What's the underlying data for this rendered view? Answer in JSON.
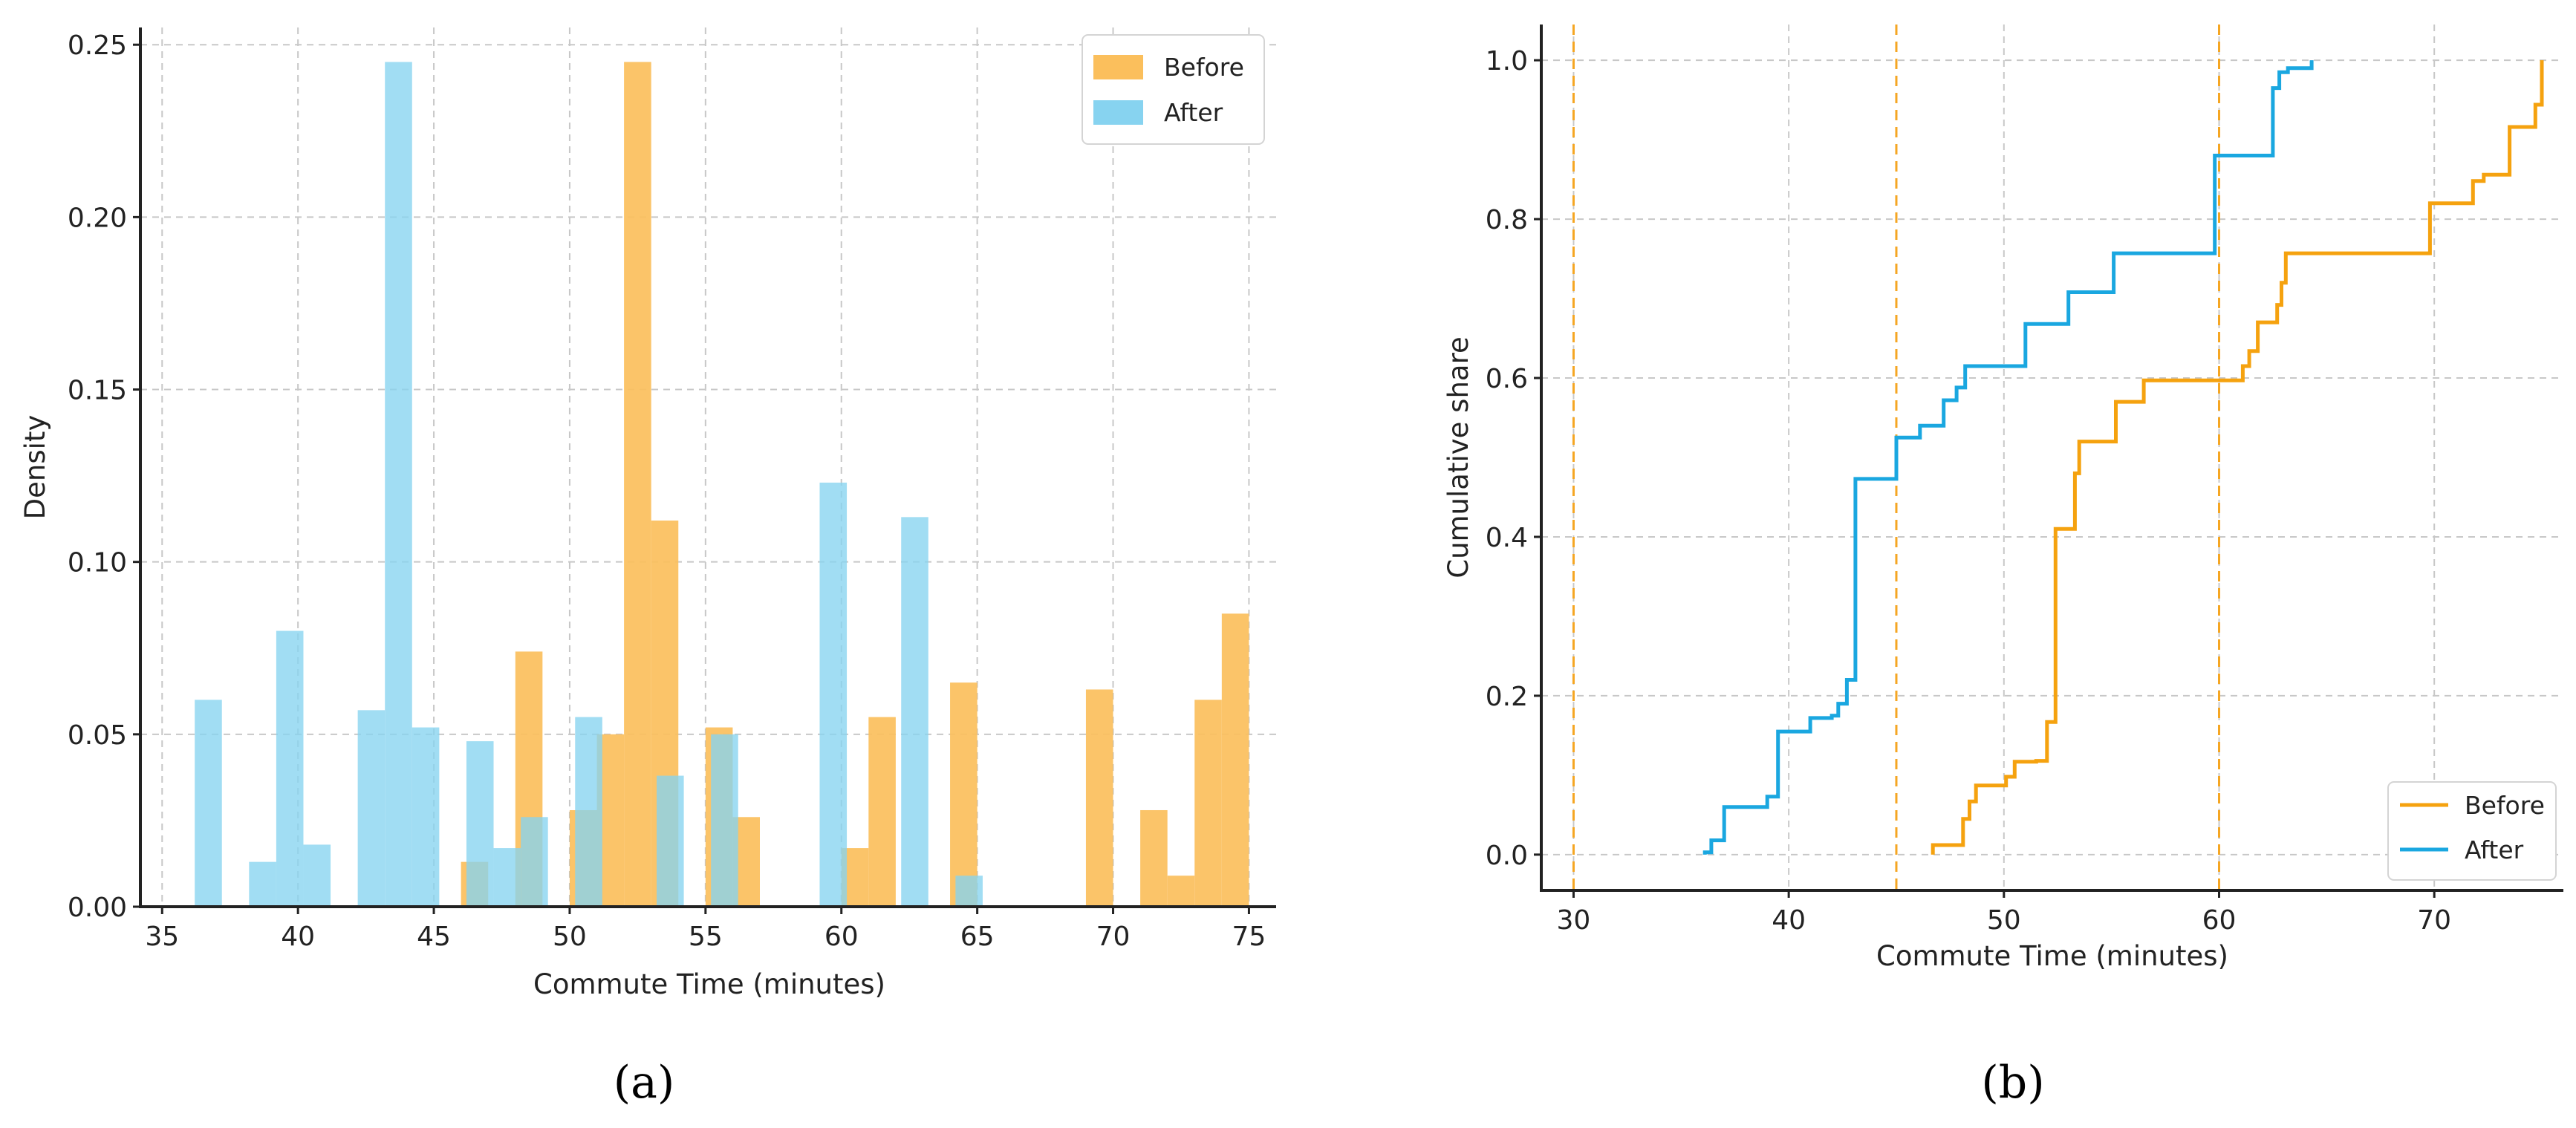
{
  "chart_data": [
    {
      "panel": "a",
      "caption": "(a)",
      "type": "bar",
      "subtype": "overlaid histogram",
      "xlabel": "Commute Time (minutes)",
      "ylabel": "Density",
      "xlim": [
        34.2,
        76.0
      ],
      "ylim": [
        0,
        0.255
      ],
      "xticks": [
        "35",
        "40",
        "45",
        "50",
        "55",
        "60",
        "65",
        "70",
        "75"
      ],
      "yticks": [
        "0.00",
        "0.05",
        "0.10",
        "0.15",
        "0.20",
        "0.25"
      ],
      "grid": true,
      "legend_position": "top-right",
      "series": [
        {
          "name": "Before",
          "color": "#fbbf5c",
          "bins": [
            {
              "x0": 46.0,
              "x1": 47.0,
              "value": 0.013
            },
            {
              "x0": 48.0,
              "x1": 49.0,
              "value": 0.074
            },
            {
              "x0": 50.0,
              "x1": 51.0,
              "value": 0.028
            },
            {
              "x0": 51.0,
              "x1": 52.0,
              "value": 0.05
            },
            {
              "x0": 52.0,
              "x1": 53.0,
              "value": 0.245
            },
            {
              "x0": 53.0,
              "x1": 54.0,
              "value": 0.112
            },
            {
              "x0": 55.0,
              "x1": 56.0,
              "value": 0.052
            },
            {
              "x0": 56.0,
              "x1": 57.0,
              "value": 0.026
            },
            {
              "x0": 60.0,
              "x1": 61.0,
              "value": 0.017
            },
            {
              "x0": 61.0,
              "x1": 62.0,
              "value": 0.055
            },
            {
              "x0": 64.0,
              "x1": 65.0,
              "value": 0.065
            },
            {
              "x0": 69.0,
              "x1": 70.0,
              "value": 0.063
            },
            {
              "x0": 71.0,
              "x1": 72.0,
              "value": 0.028
            },
            {
              "x0": 72.0,
              "x1": 73.0,
              "value": 0.009
            },
            {
              "x0": 73.0,
              "x1": 74.0,
              "value": 0.06
            },
            {
              "x0": 74.0,
              "x1": 75.0,
              "value": 0.085
            }
          ]
        },
        {
          "name": "After",
          "color": "#87d3f0",
          "bins": [
            {
              "x0": 36.2,
              "x1": 37.2,
              "value": 0.06
            },
            {
              "x0": 38.2,
              "x1": 39.2,
              "value": 0.013
            },
            {
              "x0": 39.2,
              "x1": 40.2,
              "value": 0.08
            },
            {
              "x0": 40.2,
              "x1": 41.2,
              "value": 0.018
            },
            {
              "x0": 42.2,
              "x1": 43.2,
              "value": 0.057
            },
            {
              "x0": 43.2,
              "x1": 44.2,
              "value": 0.245
            },
            {
              "x0": 44.2,
              "x1": 45.2,
              "value": 0.052
            },
            {
              "x0": 46.2,
              "x1": 47.2,
              "value": 0.048
            },
            {
              "x0": 47.2,
              "x1": 48.2,
              "value": 0.017
            },
            {
              "x0": 48.2,
              "x1": 49.2,
              "value": 0.026
            },
            {
              "x0": 50.2,
              "x1": 51.2,
              "value": 0.055
            },
            {
              "x0": 53.2,
              "x1": 54.2,
              "value": 0.038
            },
            {
              "x0": 55.2,
              "x1": 56.2,
              "value": 0.05
            },
            {
              "x0": 59.2,
              "x1": 60.2,
              "value": 0.123
            },
            {
              "x0": 62.2,
              "x1": 63.2,
              "value": 0.113
            },
            {
              "x0": 64.2,
              "x1": 65.2,
              "value": 0.009
            }
          ]
        }
      ]
    },
    {
      "panel": "b",
      "caption": "(b)",
      "type": "line",
      "subtype": "empirical CDF step",
      "xlabel": "Commute Time (minutes)",
      "ylabel": "Cumulative share",
      "xlim": [
        28.5,
        76.0
      ],
      "ylim": [
        -0.045,
        1.045
      ],
      "xticks": [
        "30",
        "40",
        "50",
        "60",
        "70"
      ],
      "yticks": [
        "0.0",
        "0.2",
        "0.4",
        "0.6",
        "0.8",
        "1.0"
      ],
      "grid": true,
      "reference_lines_x": [
        30,
        45,
        60
      ],
      "reference_line_color": "#f5a623",
      "legend_position": "bottom-right",
      "series": [
        {
          "name": "Before",
          "color": "#f5a20f",
          "x": [
            46.7,
            48.1,
            48.4,
            48.7,
            49.6,
            50.1,
            50.5,
            51.5,
            52.0,
            52.4,
            53.1,
            53.3,
            53.5,
            55.2,
            56.5,
            59.8,
            60.5,
            61.1,
            61.4,
            61.8,
            62.7,
            62.9,
            63.1,
            69.8,
            71.5,
            71.8,
            72.3,
            73.5,
            74.7,
            75.0
          ],
          "y": [
            0.012,
            0.045,
            0.067,
            0.087,
            0.087,
            0.098,
            0.117,
            0.118,
            0.167,
            0.41,
            0.41,
            0.48,
            0.52,
            0.57,
            0.597,
            0.597,
            0.597,
            0.615,
            0.634,
            0.67,
            0.692,
            0.72,
            0.757,
            0.82,
            0.82,
            0.848,
            0.856,
            0.916,
            0.944,
            1.0
          ]
        },
        {
          "name": "After",
          "color": "#1aa7e0",
          "x": [
            36.1,
            36.4,
            37.0,
            38.4,
            39.0,
            39.5,
            40.5,
            41.0,
            42.0,
            42.3,
            42.7,
            43.1,
            45.0,
            46.1,
            47.2,
            47.8,
            48.2,
            50.5,
            51.0,
            53.0,
            54.5,
            55.1,
            58.0,
            59.8,
            62.1,
            62.5,
            62.8,
            63.2,
            64.3
          ],
          "y": [
            0.003,
            0.018,
            0.06,
            0.06,
            0.073,
            0.155,
            0.155,
            0.172,
            0.175,
            0.19,
            0.22,
            0.473,
            0.525,
            0.54,
            0.572,
            0.588,
            0.615,
            0.615,
            0.668,
            0.708,
            0.708,
            0.757,
            0.757,
            0.88,
            0.88,
            0.965,
            0.985,
            0.99,
            1.0
          ]
        }
      ]
    }
  ]
}
